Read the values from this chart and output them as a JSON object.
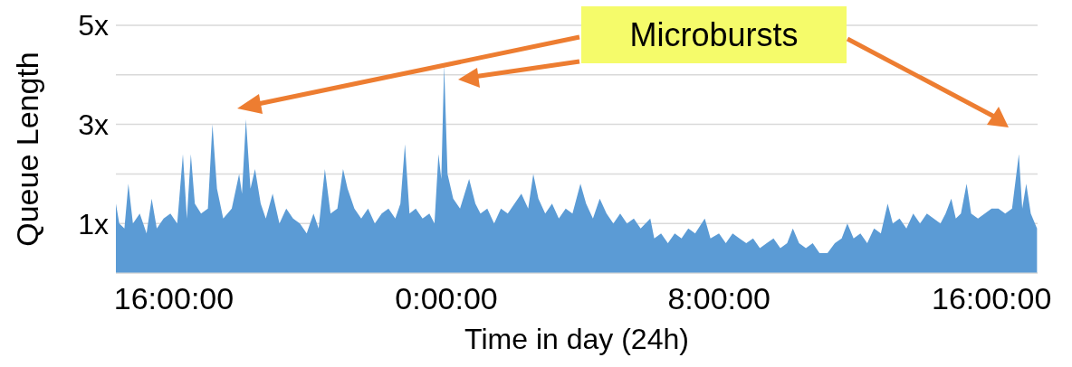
{
  "chart_data": {
    "type": "area",
    "xlabel": "Time in day (24h)",
    "ylabel": "Queue Length",
    "annotations": [
      "Microbursts"
    ],
    "xlim": [
      "--01-01T14:18",
      "--01-02T17:21"
    ],
    "xticks": [
      {
        "value": "--01-01T16:00",
        "label": "16:00:00"
      },
      {
        "value": "--01-02T00:00",
        "label": "0:00:00"
      },
      {
        "value": "--01-02T08:00",
        "label": "8:00:00"
      },
      {
        "value": "--01-02T16:00",
        "label": "16:00:00"
      }
    ],
    "ylim": [
      0,
      5
    ],
    "yticks": [
      {
        "value": 0,
        "label": null
      },
      {
        "value": 1,
        "label": "1x"
      },
      {
        "value": 2,
        "label": null
      },
      {
        "value": 3,
        "label": "3x"
      },
      {
        "value": 4,
        "label": null
      },
      {
        "value": 5,
        "label": "5x"
      }
    ],
    "grid": "y",
    "series": [
      {
        "color": "#5b9bd5",
        "x": [
          "--01-01T14:18",
          "--01-01T14:24",
          "--01-01T14:33",
          "--01-01T14:40",
          "--01-01T14:48",
          "--01-01T15:00",
          "--01-01T15:12",
          "--01-01T15:21",
          "--01-01T15:30",
          "--01-01T15:42",
          "--01-01T15:54",
          "--01-01T16:06",
          "--01-01T16:16",
          "--01-01T16:23",
          "--01-01T16:30",
          "--01-01T16:37",
          "--01-01T16:48",
          "--01-01T17:00",
          "--01-01T17:08",
          "--01-01T17:16",
          "--01-01T17:27",
          "--01-01T17:42",
          "--01-01T17:55",
          "--01-01T18:00",
          "--01-01T18:07",
          "--01-01T18:15",
          "--01-01T18:23",
          "--01-01T18:33",
          "--01-01T18:42",
          "--01-01T18:54",
          "--01-01T19:06",
          "--01-01T19:18",
          "--01-01T19:30",
          "--01-01T19:42",
          "--01-01T19:54",
          "--01-01T20:06",
          "--01-01T20:15",
          "--01-01T20:26",
          "--01-01T20:36",
          "--01-01T20:48",
          "--01-01T20:58",
          "--01-01T21:06",
          "--01-01T21:18",
          "--01-01T21:30",
          "--01-01T21:42",
          "--01-01T21:54",
          "--01-01T22:06",
          "--01-01T22:18",
          "--01-01T22:30",
          "--01-01T22:39",
          "--01-01T22:47",
          "--01-01T22:55",
          "--01-01T23:06",
          "--01-01T23:18",
          "--01-01T23:30",
          "--01-01T23:39",
          "--01-01T23:46",
          "--01-01T23:51",
          "--01-01T23:56",
          "--01-02T00:02",
          "--01-02T00:12",
          "--01-02T00:24",
          "--01-02T00:40",
          "--01-02T00:51",
          "--01-02T01:00",
          "--01-02T01:12",
          "--01-02T01:24",
          "--01-02T01:36",
          "--01-02T01:48",
          "--01-02T02:00",
          "--01-02T02:12",
          "--01-02T02:24",
          "--01-02T02:33",
          "--01-02T02:42",
          "--01-02T02:54",
          "--01-02T03:06",
          "--01-02T03:18",
          "--01-02T03:30",
          "--01-02T03:42",
          "--01-02T03:56",
          "--01-02T04:06",
          "--01-02T04:18",
          "--01-02T04:30",
          "--01-02T04:42",
          "--01-02T04:54",
          "--01-02T05:06",
          "--01-02T05:18",
          "--01-02T05:30",
          "--01-02T05:42",
          "--01-02T05:59",
          "--01-02T06:06",
          "--01-02T06:18",
          "--01-02T06:30",
          "--01-02T06:42",
          "--01-02T06:54",
          "--01-02T07:06",
          "--01-02T07:18",
          "--01-02T07:35",
          "--01-02T07:45",
          "--01-02T08:00",
          "--01-02T08:12",
          "--01-02T08:24",
          "--01-02T08:36",
          "--01-02T08:48",
          "--01-02T09:00",
          "--01-02T09:12",
          "--01-02T09:24",
          "--01-02T09:36",
          "--01-02T09:48",
          "--01-02T10:00",
          "--01-02T10:10",
          "--01-02T10:21",
          "--01-02T10:33",
          "--01-02T10:45",
          "--01-02T10:57",
          "--01-02T11:11",
          "--01-02T11:24",
          "--01-02T11:36",
          "--01-02T11:46",
          "--01-02T11:57",
          "--01-02T12:09",
          "--01-02T12:21",
          "--01-02T12:33",
          "--01-02T12:45",
          "--01-02T12:57",
          "--01-02T13:06",
          "--01-02T13:18",
          "--01-02T13:30",
          "--01-02T13:42",
          "--01-02T13:54",
          "--01-02T14:06",
          "--01-02T14:18",
          "--01-02T14:30",
          "--01-02T14:39",
          "--01-02T14:49",
          "--01-02T14:57",
          "--01-02T15:06",
          "--01-02T15:16",
          "--01-02T15:24",
          "--01-02T15:36",
          "--01-02T15:48",
          "--01-02T16:00",
          "--01-02T16:12",
          "--01-02T16:24",
          "--01-02T16:36",
          "--01-02T16:48",
          "--01-02T16:54",
          "--01-02T17:01",
          "--01-02T17:09",
          "--01-02T17:20"
        ],
        "values": [
          1.4,
          1.0,
          0.9,
          1.8,
          1.0,
          1.2,
          0.8,
          1.5,
          0.9,
          1.1,
          1.2,
          1.0,
          2.4,
          1.1,
          2.4,
          1.4,
          1.2,
          1.3,
          3.0,
          1.7,
          1.1,
          1.3,
          2.0,
          1.6,
          3.1,
          1.7,
          2.1,
          1.4,
          1.1,
          1.6,
          1.0,
          1.3,
          1.1,
          1.0,
          0.8,
          1.2,
          0.9,
          2.1,
          1.2,
          1.3,
          2.1,
          1.7,
          1.3,
          1.1,
          1.3,
          1.0,
          1.2,
          1.3,
          1.1,
          1.4,
          2.6,
          1.2,
          1.3,
          1.1,
          1.2,
          1.0,
          2.4,
          1.9,
          4.2,
          2.0,
          1.5,
          1.3,
          1.9,
          1.4,
          1.2,
          1.3,
          1.0,
          1.3,
          1.2,
          1.4,
          1.6,
          1.3,
          2.0,
          1.5,
          1.2,
          1.4,
          1.1,
          1.3,
          1.2,
          1.8,
          1.4,
          1.1,
          1.5,
          1.2,
          1.0,
          1.2,
          1.0,
          1.1,
          0.9,
          1.1,
          0.7,
          0.8,
          0.6,
          0.8,
          0.7,
          0.9,
          0.8,
          1.1,
          0.7,
          0.8,
          0.6,
          0.8,
          0.7,
          0.6,
          0.7,
          0.5,
          0.6,
          0.7,
          0.5,
          0.6,
          0.9,
          0.6,
          0.5,
          0.6,
          0.4,
          0.4,
          0.6,
          0.7,
          1.0,
          0.7,
          0.8,
          0.6,
          0.9,
          0.8,
          1.4,
          1.0,
          1.1,
          0.9,
          1.2,
          1.0,
          1.2,
          1.1,
          1.0,
          1.2,
          1.5,
          1.1,
          1.2,
          1.8,
          1.2,
          1.1,
          1.2,
          1.3,
          1.3,
          1.2,
          1.3,
          2.4,
          1.3,
          1.8,
          1.2,
          0.9
        ]
      }
    ]
  }
}
